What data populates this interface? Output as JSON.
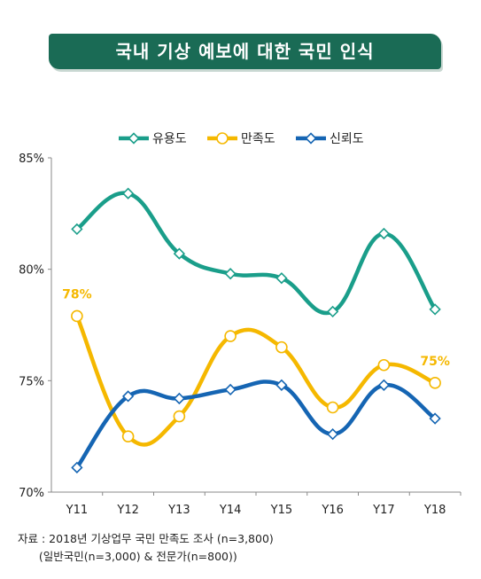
{
  "title": "국내 기상 예보에 대한 국민 인식",
  "source": {
    "line1": "자료 : 2018년 기상업무 국민 만족도 조사 (n=3,800)",
    "line2": "      (일반국민(n=3,000) & 전문가(n=800))"
  },
  "chart_data": {
    "type": "line",
    "categories": [
      "Y11",
      "Y12",
      "Y13",
      "Y14",
      "Y15",
      "Y16",
      "Y17",
      "Y18"
    ],
    "ylim": [
      70,
      85
    ],
    "yticks": [
      "70%",
      "75%",
      "80%",
      "85%"
    ],
    "ytick_values": [
      70,
      75,
      80,
      85
    ],
    "legend_position": "top-center",
    "series": [
      {
        "name": "유용도",
        "color": "#1a9e8a",
        "marker": "diamond",
        "values": [
          81.8,
          83.4,
          80.7,
          79.8,
          79.6,
          78.1,
          81.6,
          78.2
        ]
      },
      {
        "name": "만족도",
        "color": "#f5b800",
        "marker": "circle",
        "values": [
          77.9,
          72.5,
          73.4,
          77.0,
          76.5,
          73.8,
          75.7,
          74.9
        ]
      },
      {
        "name": "신뢰도",
        "color": "#1565b3",
        "marker": "diamond",
        "values": [
          71.1,
          74.3,
          74.2,
          74.6,
          74.8,
          72.6,
          74.8,
          73.3
        ]
      }
    ],
    "annotations": [
      {
        "text": "78%",
        "series": "만족도",
        "category": "Y11",
        "color": "#f5b800"
      },
      {
        "text": "75%",
        "series": "만족도",
        "category": "Y18",
        "color": "#f5b800"
      }
    ]
  }
}
